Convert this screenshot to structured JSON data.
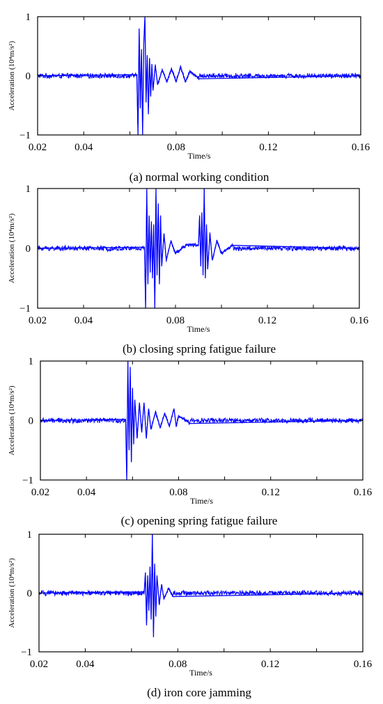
{
  "colors": {
    "signal": "#0000ff",
    "axis": "#000000",
    "background": "#ffffff"
  },
  "chart_data": [
    {
      "type": "line",
      "caption": "(a) normal working condition",
      "xlabel": "Time/s",
      "ylabel": "Acceleration (10⁴m/s²)",
      "xlim": [
        0.02,
        0.16
      ],
      "ylim": [
        -1,
        1
      ],
      "xticks": [
        0.02,
        0.04,
        0.06,
        0.08,
        0.1,
        0.12,
        0.14,
        0.16
      ],
      "xtick_labels": [
        "0.02",
        "0.04",
        "",
        "0.08",
        "",
        "0.12",
        "",
        "0.16"
      ],
      "yticks": [
        -1,
        0,
        1
      ],
      "ytick_labels": [
        "−1",
        "0",
        "1"
      ],
      "baseline_noise_amplitude": 0.05,
      "series": [
        {
          "values": [
            [
              0.02,
              0.0
            ],
            [
              0.063,
              0.02
            ],
            [
              0.0635,
              -1.0
            ],
            [
              0.064,
              0.8
            ],
            [
              0.0645,
              -0.55
            ],
            [
              0.065,
              0.45
            ],
            [
              0.0655,
              -1.0
            ],
            [
              0.066,
              0.55
            ],
            [
              0.0665,
              1.0
            ],
            [
              0.067,
              -0.45
            ],
            [
              0.0675,
              0.35
            ],
            [
              0.068,
              -0.65
            ],
            [
              0.0685,
              0.3
            ],
            [
              0.069,
              -0.35
            ],
            [
              0.0695,
              0.2
            ],
            [
              0.07,
              -0.25
            ],
            [
              0.071,
              0.18
            ],
            [
              0.072,
              -0.15
            ],
            [
              0.074,
              0.1
            ],
            [
              0.076,
              -0.1
            ],
            [
              0.078,
              0.12
            ],
            [
              0.08,
              -0.1
            ],
            [
              0.082,
              0.15
            ],
            [
              0.084,
              -0.1
            ],
            [
              0.086,
              0.08
            ],
            [
              0.09,
              -0.05
            ],
            [
              0.16,
              0.0
            ]
          ]
        }
      ]
    },
    {
      "type": "line",
      "caption": "(b) closing spring fatigue failure",
      "xlabel": "Time/s",
      "ylabel": "Acceleration (10⁴m/s²)",
      "xlim": [
        0.02,
        0.16
      ],
      "ylim": [
        -1,
        1
      ],
      "xticks": [
        0.02,
        0.04,
        0.06,
        0.08,
        0.1,
        0.12,
        0.14,
        0.16
      ],
      "xtick_labels": [
        "0.02",
        "0.04",
        "",
        "0.08",
        "",
        "0.12",
        "",
        "0.16"
      ],
      "yticks": [
        -1,
        0,
        1
      ],
      "ytick_labels": [
        "−1",
        "0",
        "1"
      ],
      "baseline_noise_amplitude": 0.05,
      "series": [
        {
          "values": [
            [
              0.02,
              0.0
            ],
            [
              0.0665,
              0.02
            ],
            [
              0.067,
              -1.0
            ],
            [
              0.0675,
              1.0
            ],
            [
              0.068,
              -0.6
            ],
            [
              0.0685,
              0.55
            ],
            [
              0.069,
              -0.4
            ],
            [
              0.0695,
              0.45
            ],
            [
              0.07,
              -0.5
            ],
            [
              0.0705,
              0.4
            ],
            [
              0.071,
              -1.0
            ],
            [
              0.0715,
              1.0
            ],
            [
              0.072,
              -0.45
            ],
            [
              0.0725,
              0.75
            ],
            [
              0.073,
              -0.6
            ],
            [
              0.0735,
              0.55
            ],
            [
              0.074,
              -0.3
            ],
            [
              0.075,
              0.25
            ],
            [
              0.076,
              -0.2
            ],
            [
              0.078,
              0.12
            ],
            [
              0.08,
              -0.08
            ],
            [
              0.085,
              0.06
            ],
            [
              0.09,
              0.05
            ],
            [
              0.0905,
              0.55
            ],
            [
              0.091,
              -0.3
            ],
            [
              0.0915,
              0.6
            ],
            [
              0.092,
              -0.45
            ],
            [
              0.0925,
              1.0
            ],
            [
              0.093,
              -0.5
            ],
            [
              0.0935,
              0.4
            ],
            [
              0.094,
              -0.35
            ],
            [
              0.095,
              0.25
            ],
            [
              0.096,
              -0.2
            ],
            [
              0.098,
              0.12
            ],
            [
              0.1,
              -0.08
            ],
            [
              0.105,
              0.05
            ],
            [
              0.16,
              0.0
            ]
          ]
        }
      ]
    },
    {
      "type": "line",
      "caption": "(c) opening spring fatigue failure",
      "xlabel": "Time/s",
      "ylabel": "Acceleration (10⁴m/s²)",
      "xlim": [
        0.02,
        0.16
      ],
      "ylim": [
        -1,
        1
      ],
      "xticks": [
        0.02,
        0.04,
        0.06,
        0.08,
        0.1,
        0.12,
        0.14,
        0.16
      ],
      "xtick_labels": [
        "0.02",
        "0.04",
        "",
        "0.08",
        "",
        "0.12",
        "",
        "0.16"
      ],
      "yticks": [
        -1,
        0,
        1
      ],
      "ytick_labels": [
        "−1",
        "0",
        "1"
      ],
      "baseline_noise_amplitude": 0.05,
      "series": [
        {
          "values": [
            [
              0.02,
              0.0
            ],
            [
              0.057,
              0.02
            ],
            [
              0.0575,
              -1.0
            ],
            [
              0.058,
              1.0
            ],
            [
              0.0585,
              -0.5
            ],
            [
              0.059,
              0.9
            ],
            [
              0.0595,
              -0.7
            ],
            [
              0.06,
              0.55
            ],
            [
              0.0605,
              -0.4
            ],
            [
              0.061,
              0.35
            ],
            [
              0.062,
              -0.3
            ],
            [
              0.063,
              0.3
            ],
            [
              0.064,
              -0.2
            ],
            [
              0.065,
              0.3
            ],
            [
              0.066,
              -0.3
            ],
            [
              0.067,
              0.2
            ],
            [
              0.068,
              -0.15
            ],
            [
              0.07,
              0.15
            ],
            [
              0.072,
              -0.12
            ],
            [
              0.074,
              0.12
            ],
            [
              0.076,
              -0.1
            ],
            [
              0.078,
              0.2
            ],
            [
              0.079,
              -0.1
            ],
            [
              0.08,
              0.08
            ],
            [
              0.085,
              -0.05
            ],
            [
              0.16,
              0.0
            ]
          ]
        }
      ]
    },
    {
      "type": "line",
      "caption": "(d) iron core jamming",
      "xlabel": "Time/s",
      "ylabel": "Acceleration (10⁴m/s²)",
      "xlim": [
        0.02,
        0.16
      ],
      "ylim": [
        -1,
        1
      ],
      "xticks": [
        0.02,
        0.04,
        0.06,
        0.08,
        0.1,
        0.12,
        0.14,
        0.16
      ],
      "xtick_labels": [
        "0.02",
        "0.04",
        "",
        "0.08",
        "",
        "0.12",
        "",
        "0.16"
      ],
      "yticks": [
        -1,
        0,
        1
      ],
      "ytick_labels": [
        "−1",
        "0",
        "1"
      ],
      "baseline_noise_amplitude": 0.05,
      "series": [
        {
          "values": [
            [
              0.02,
              0.0
            ],
            [
              0.0655,
              0.02
            ],
            [
              0.066,
              0.35
            ],
            [
              0.0665,
              -0.55
            ],
            [
              0.067,
              0.3
            ],
            [
              0.0675,
              -0.3
            ],
            [
              0.068,
              0.45
            ],
            [
              0.0685,
              -0.45
            ],
            [
              0.069,
              1.0
            ],
            [
              0.0695,
              -0.75
            ],
            [
              0.07,
              0.5
            ],
            [
              0.0705,
              -0.4
            ],
            [
              0.071,
              0.3
            ],
            [
              0.072,
              -0.2
            ],
            [
              0.073,
              0.15
            ],
            [
              0.074,
              -0.1
            ],
            [
              0.076,
              0.08
            ],
            [
              0.078,
              -0.06
            ],
            [
              0.16,
              0.0
            ]
          ]
        }
      ]
    }
  ]
}
